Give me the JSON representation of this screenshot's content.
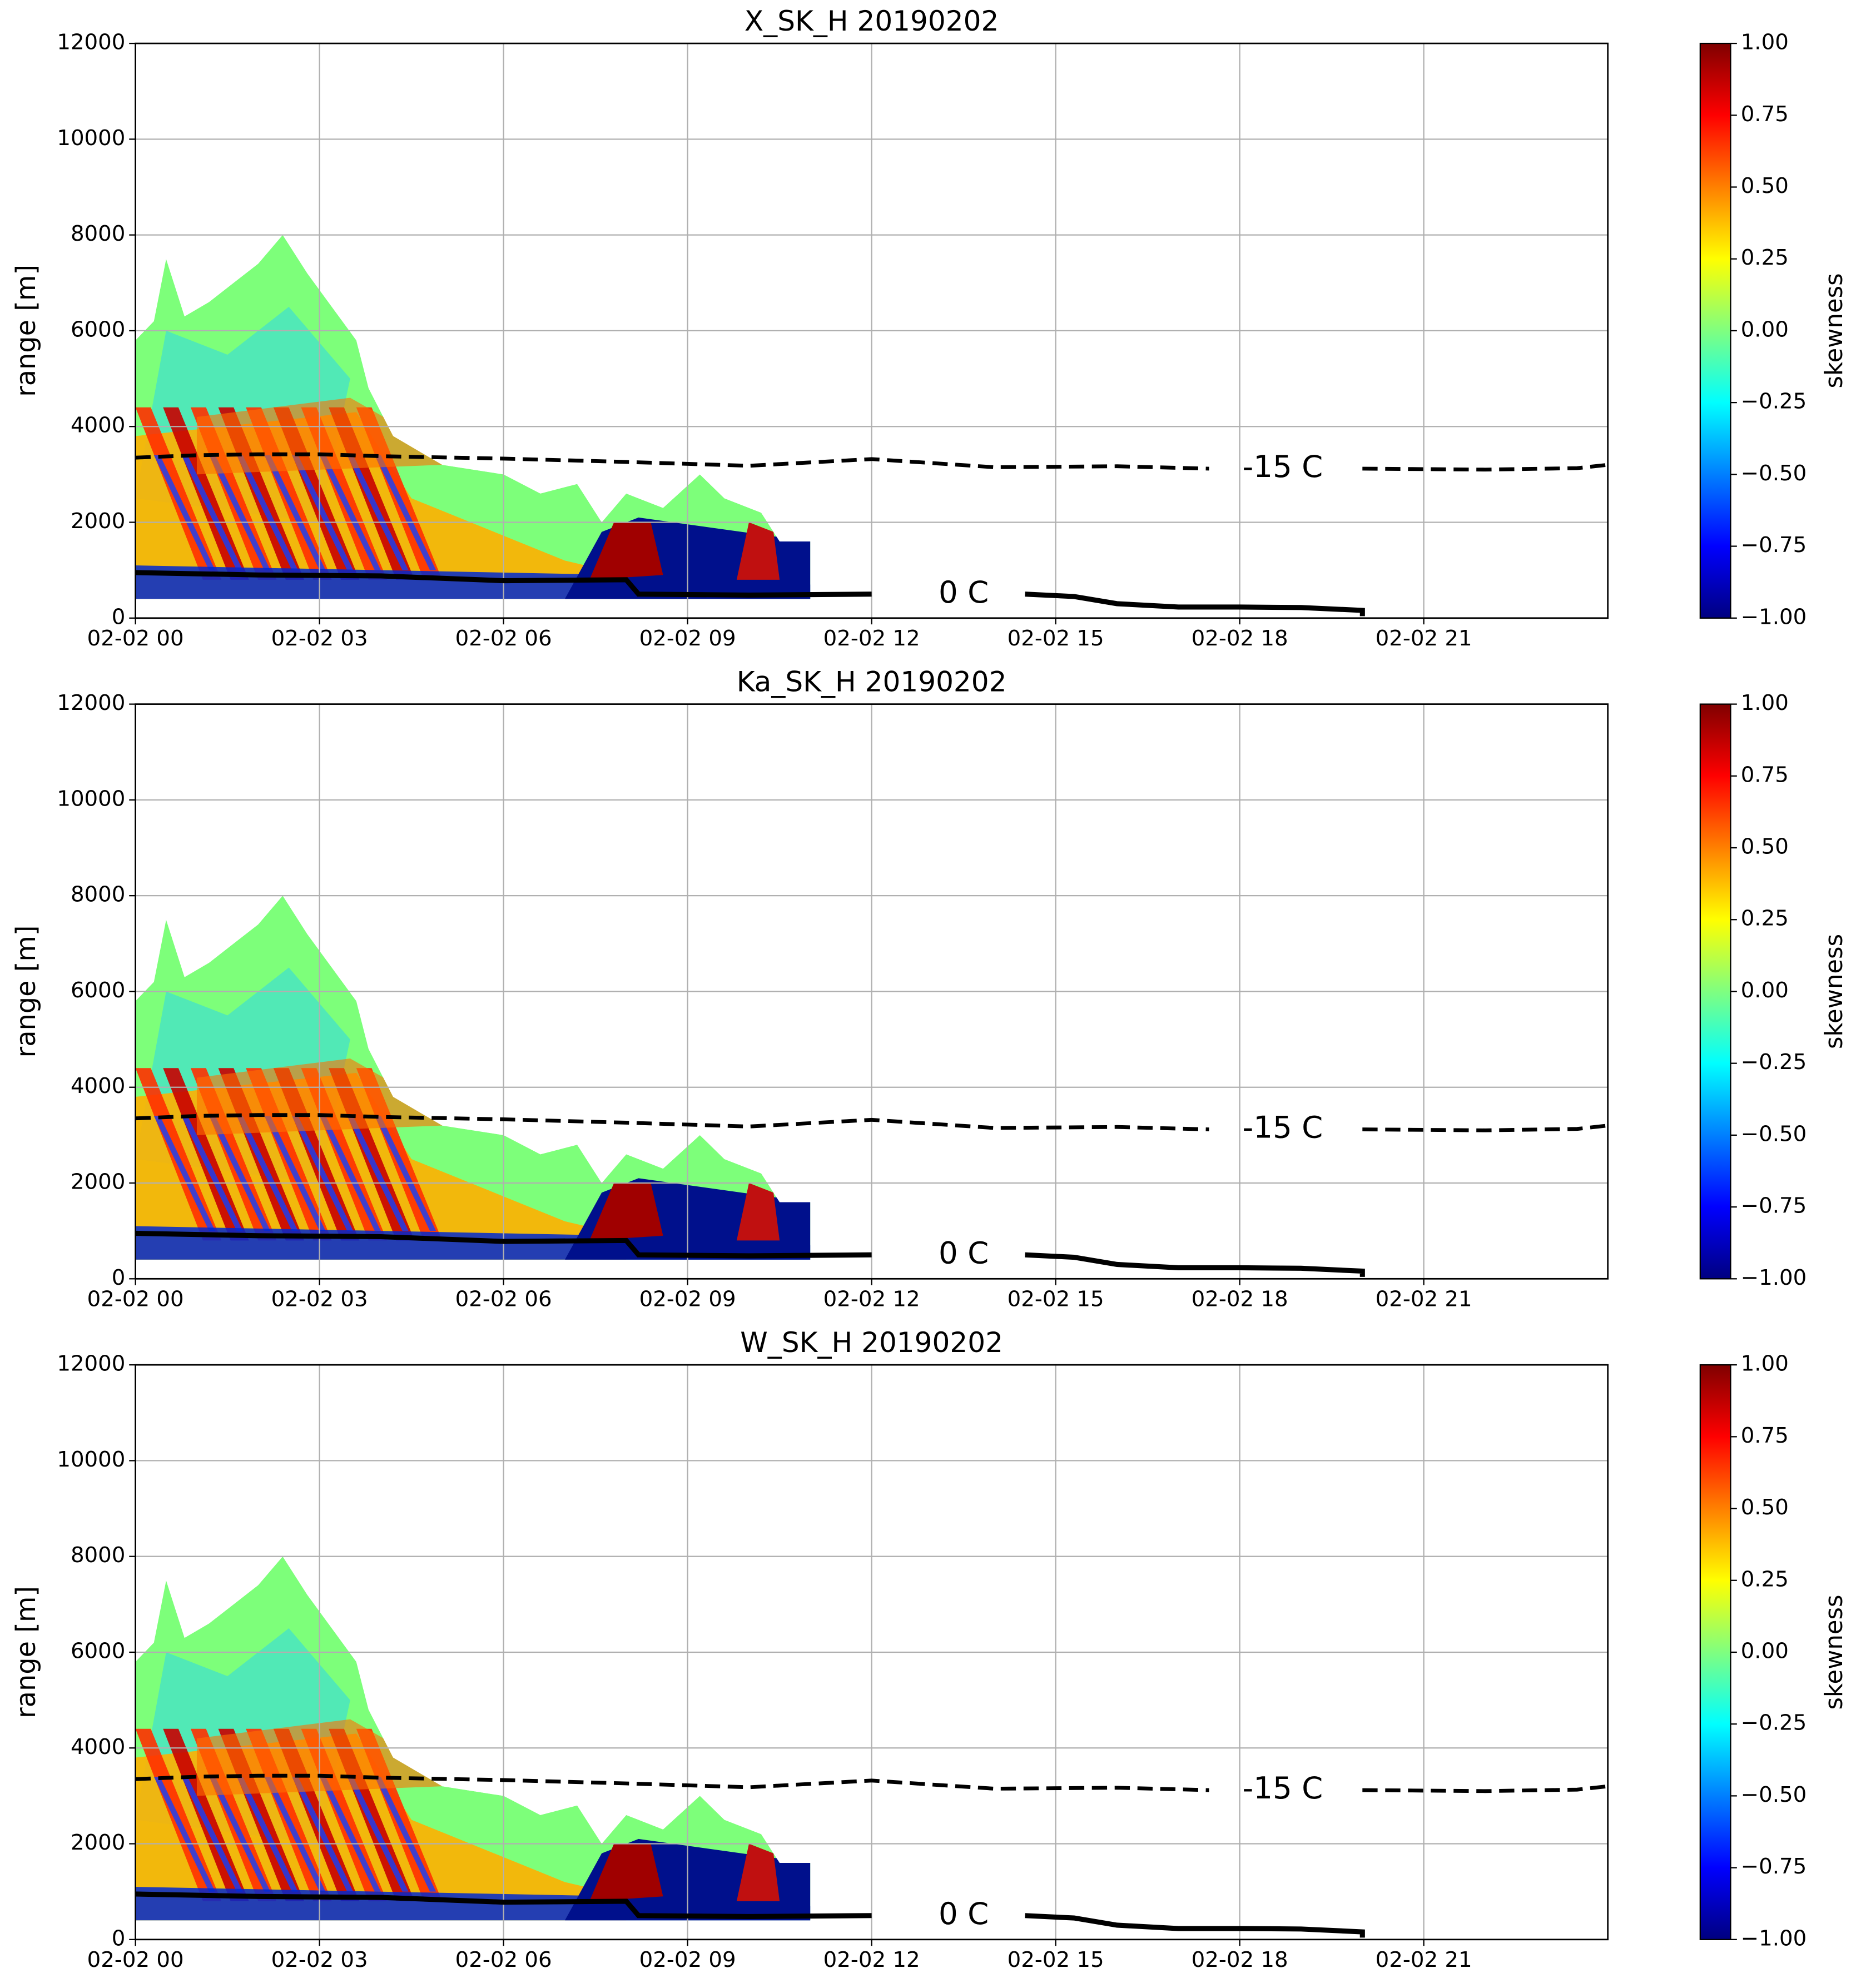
{
  "chart_data": [
    {
      "type": "line",
      "title": "X_SK_H 20190202",
      "ylabel": "range [m]",
      "colorbar_label": "skewness",
      "colormap": "jet",
      "xlim": [
        0,
        24
      ],
      "ylim": [
        0,
        12000
      ],
      "grid": true,
      "xticks": [
        {
          "value": 0,
          "label": "02-02 00"
        },
        {
          "value": 3,
          "label": "02-02 03"
        },
        {
          "value": 6,
          "label": "02-02 06"
        },
        {
          "value": 9,
          "label": "02-02 09"
        },
        {
          "value": 12,
          "label": "02-02 12"
        },
        {
          "value": 15,
          "label": "02-02 15"
        },
        {
          "value": 18,
          "label": "02-02 18"
        },
        {
          "value": 21,
          "label": "02-02 21"
        }
      ],
      "yticks": [
        0,
        2000,
        4000,
        6000,
        8000,
        10000,
        12000
      ],
      "colorbar_lim": [
        -1,
        1
      ],
      "colorbar_ticks": [
        {
          "value": -1,
          "label": "−1.00"
        },
        {
          "value": -0.75,
          "label": "−0.75"
        },
        {
          "value": -0.5,
          "label": "−0.50"
        },
        {
          "value": -0.25,
          "label": "−0.25"
        },
        {
          "value": 0,
          "label": "0.00"
        },
        {
          "value": 0.25,
          "label": "0.25"
        },
        {
          "value": 0.5,
          "label": "0.50"
        },
        {
          "value": 0.75,
          "label": "0.75"
        },
        {
          "value": 1,
          "label": "1.00"
        }
      ],
      "series": [
        {
          "name": "-15 C",
          "color": "#000000",
          "dash": true,
          "x": [
            0,
            1,
            2,
            3,
            4,
            6,
            8,
            10,
            12,
            14,
            16,
            17.5,
            18.7,
            20,
            22,
            23.5,
            24
          ],
          "values": [
            3350,
            3400,
            3420,
            3420,
            3380,
            3330,
            3260,
            3180,
            3320,
            3150,
            3170,
            3120,
            null,
            3120,
            3100,
            3130,
            3200
          ]
        },
        {
          "name": "0 C",
          "color": "#000000",
          "dash": false,
          "x": [
            0,
            2,
            4,
            6,
            8,
            8.2,
            10,
            12,
            13.5,
            14.5,
            15.3,
            16,
            17,
            18,
            19,
            20,
            20
          ],
          "values": [
            950,
            900,
            880,
            780,
            800,
            500,
            480,
            500,
            null,
            500,
            450,
            300,
            230,
            230,
            220,
            160,
            40
          ]
        }
      ]
    },
    {
      "type": "line",
      "title": "Ka_SK_H 20190202",
      "ylabel": "range [m]",
      "colorbar_label": "skewness",
      "colormap": "jet",
      "xlim": [
        0,
        24
      ],
      "ylim": [
        0,
        12000
      ],
      "grid": true,
      "xticks": [
        {
          "value": 0,
          "label": "02-02 00"
        },
        {
          "value": 3,
          "label": "02-02 03"
        },
        {
          "value": 6,
          "label": "02-02 06"
        },
        {
          "value": 9,
          "label": "02-02 09"
        },
        {
          "value": 12,
          "label": "02-02 12"
        },
        {
          "value": 15,
          "label": "02-02 15"
        },
        {
          "value": 18,
          "label": "02-02 18"
        },
        {
          "value": 21,
          "label": "02-02 21"
        }
      ],
      "yticks": [
        0,
        2000,
        4000,
        6000,
        8000,
        10000,
        12000
      ],
      "colorbar_lim": [
        -1,
        1
      ],
      "colorbar_ticks": [
        {
          "value": -1,
          "label": "−1.00"
        },
        {
          "value": -0.75,
          "label": "−0.75"
        },
        {
          "value": -0.5,
          "label": "−0.50"
        },
        {
          "value": -0.25,
          "label": "−0.25"
        },
        {
          "value": 0,
          "label": "0.00"
        },
        {
          "value": 0.25,
          "label": "0.25"
        },
        {
          "value": 0.5,
          "label": "0.50"
        },
        {
          "value": 0.75,
          "label": "0.75"
        },
        {
          "value": 1,
          "label": "1.00"
        }
      ],
      "series": [
        {
          "name": "-15 C",
          "color": "#000000",
          "dash": true,
          "x": [
            0,
            1,
            2,
            3,
            4,
            6,
            8,
            10,
            12,
            14,
            16,
            17.5,
            18.7,
            20,
            22,
            23.5,
            24
          ],
          "values": [
            3350,
            3400,
            3420,
            3420,
            3380,
            3330,
            3260,
            3180,
            3320,
            3150,
            3170,
            3120,
            null,
            3120,
            3100,
            3130,
            3200
          ]
        },
        {
          "name": "0 C",
          "color": "#000000",
          "dash": false,
          "x": [
            0,
            2,
            4,
            6,
            8,
            8.2,
            10,
            12,
            13.5,
            14.5,
            15.3,
            16,
            17,
            18,
            19,
            20,
            20
          ],
          "values": [
            950,
            900,
            880,
            780,
            800,
            500,
            480,
            500,
            null,
            500,
            450,
            300,
            230,
            230,
            220,
            160,
            40
          ]
        }
      ]
    },
    {
      "type": "line",
      "title": "W_SK_H 20190202",
      "ylabel": "range [m]",
      "colorbar_label": "skewness",
      "colormap": "jet",
      "xlim": [
        0,
        24
      ],
      "ylim": [
        0,
        12000
      ],
      "grid": true,
      "xticks": [
        {
          "value": 0,
          "label": "02-02 00"
        },
        {
          "value": 3,
          "label": "02-02 03"
        },
        {
          "value": 6,
          "label": "02-02 06"
        },
        {
          "value": 9,
          "label": "02-02 09"
        },
        {
          "value": 12,
          "label": "02-02 12"
        },
        {
          "value": 15,
          "label": "02-02 15"
        },
        {
          "value": 18,
          "label": "02-02 18"
        },
        {
          "value": 21,
          "label": "02-02 21"
        }
      ],
      "yticks": [
        0,
        2000,
        4000,
        6000,
        8000,
        10000,
        12000
      ],
      "colorbar_lim": [
        -1,
        1
      ],
      "colorbar_ticks": [
        {
          "value": -1,
          "label": "−1.00"
        },
        {
          "value": -0.75,
          "label": "−0.75"
        },
        {
          "value": -0.5,
          "label": "−0.50"
        },
        {
          "value": -0.25,
          "label": "−0.25"
        },
        {
          "value": 0,
          "label": "0.00"
        },
        {
          "value": 0.25,
          "label": "0.25"
        },
        {
          "value": 0.5,
          "label": "0.50"
        },
        {
          "value": 0.75,
          "label": "0.75"
        },
        {
          "value": 1,
          "label": "1.00"
        }
      ],
      "series": [
        {
          "name": "-15 C",
          "color": "#000000",
          "dash": true,
          "x": [
            0,
            1,
            2,
            3,
            4,
            6,
            8,
            10,
            12,
            14,
            16,
            17.5,
            18.7,
            20,
            22,
            23.5,
            24
          ],
          "values": [
            3350,
            3400,
            3420,
            3420,
            3380,
            3330,
            3260,
            3180,
            3320,
            3150,
            3170,
            3120,
            null,
            3120,
            3100,
            3130,
            3200
          ]
        },
        {
          "name": "0 C",
          "color": "#000000",
          "dash": false,
          "x": [
            0,
            2,
            4,
            6,
            8,
            8.2,
            10,
            12,
            13.5,
            14.5,
            15.3,
            16,
            17,
            18,
            19,
            20,
            20
          ],
          "values": [
            950,
            900,
            880,
            780,
            800,
            500,
            480,
            500,
            null,
            500,
            450,
            300,
            230,
            230,
            220,
            160,
            40
          ]
        }
      ]
    }
  ]
}
